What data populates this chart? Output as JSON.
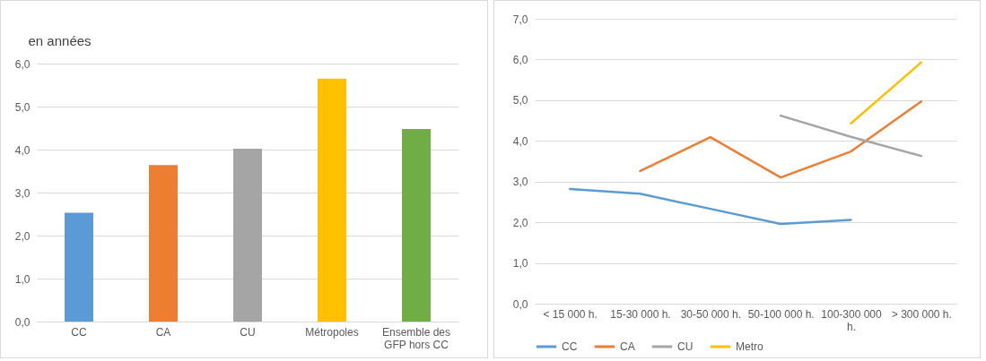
{
  "chart_data": [
    {
      "type": "bar",
      "ylabel": "en années",
      "categories": [
        "CC",
        "CA",
        "CU",
        "Métropoles",
        "Ensemble des GFP hors CC"
      ],
      "values": [
        2.53,
        3.64,
        4.02,
        5.65,
        4.48
      ],
      "colors": [
        "#5b9bd5",
        "#ed7d31",
        "#a5a5a5",
        "#ffc000",
        "#70ad47"
      ],
      "ylim": [
        0,
        6
      ],
      "yticks": [
        {
          "value": 0,
          "label": "0,0"
        },
        {
          "value": 1,
          "label": "1,0"
        },
        {
          "value": 2,
          "label": "2,0"
        },
        {
          "value": 3,
          "label": "3,0"
        },
        {
          "value": 4,
          "label": "4,0"
        },
        {
          "value": 5,
          "label": "5,0"
        },
        {
          "value": 6,
          "label": "6,0"
        }
      ],
      "grid": "y"
    },
    {
      "type": "line",
      "categories": [
        "< 15 000 h.",
        "15-30 000 h.",
        "30-50 000 h.",
        "50-100 000 h.",
        "100-300 000 h.",
        "> 300 000 h."
      ],
      "series": [
        {
          "name": "CC",
          "color": "#5b9bd5",
          "values": [
            2.82,
            2.7,
            2.33,
            1.96,
            2.06,
            null
          ]
        },
        {
          "name": "CA",
          "color": "#ed7d31",
          "values": [
            null,
            3.26,
            4.09,
            3.1,
            3.74,
            4.97
          ]
        },
        {
          "name": "CU",
          "color": "#a5a5a5",
          "values": [
            null,
            null,
            null,
            4.62,
            4.1,
            3.63
          ]
        },
        {
          "name": "Metro",
          "color": "#ffc000",
          "values": [
            null,
            null,
            null,
            null,
            4.43,
            5.93
          ]
        }
      ],
      "ylim": [
        0,
        7
      ],
      "yticks": [
        {
          "value": 0,
          "label": "0,0"
        },
        {
          "value": 1,
          "label": "1,0"
        },
        {
          "value": 2,
          "label": "2,0"
        },
        {
          "value": 3,
          "label": "3,0"
        },
        {
          "value": 4,
          "label": "4,0"
        },
        {
          "value": 5,
          "label": "5,0"
        },
        {
          "value": 6,
          "label": "6,0"
        },
        {
          "value": 7,
          "label": "7,0"
        }
      ],
      "grid": "y",
      "legend": "bottom",
      "line_style": "solid",
      "marker": "none"
    }
  ]
}
